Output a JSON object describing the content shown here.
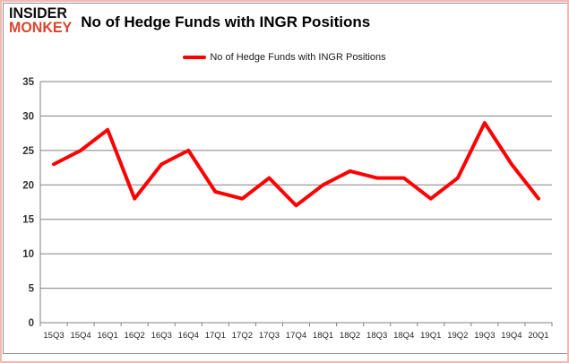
{
  "header": {
    "brand_line1": "INSIDER",
    "brand_line2": "MONKEY",
    "title": "No of Hedge Funds with INGR Positions"
  },
  "legend": {
    "label": "No of Hedge Funds with INGR Positions"
  },
  "chart_data": {
    "type": "line",
    "title": "No of Hedge Funds with INGR Positions",
    "categories": [
      "15Q3",
      "15Q4",
      "16Q1",
      "16Q2",
      "16Q3",
      "16Q4",
      "17Q1",
      "17Q2",
      "17Q3",
      "17Q4",
      "18Q1",
      "18Q2",
      "18Q3",
      "18Q4",
      "19Q1",
      "19Q2",
      "19Q3",
      "19Q4",
      "20Q1"
    ],
    "series": [
      {
        "name": "No of Hedge Funds with INGR Positions",
        "values": [
          23,
          25,
          28,
          18,
          23,
          25,
          19,
          18,
          21,
          17,
          20,
          22,
          21,
          21,
          18,
          21,
          29,
          23,
          18
        ]
      }
    ],
    "ylim": [
      0,
      35
    ],
    "ytick_step": 5,
    "xlabel": "",
    "ylabel": "",
    "grid": "horizontal",
    "legend_position": "top-center",
    "line_color": "#ff0000"
  },
  "colors": {
    "line": "#ff0000",
    "brand_red": "#d8442e",
    "grid": "#808080",
    "axis": "#808080",
    "frame_border": "#8e8e8e",
    "outer_border": "#f2b9b3",
    "bottom_bar": "#ee1111"
  }
}
